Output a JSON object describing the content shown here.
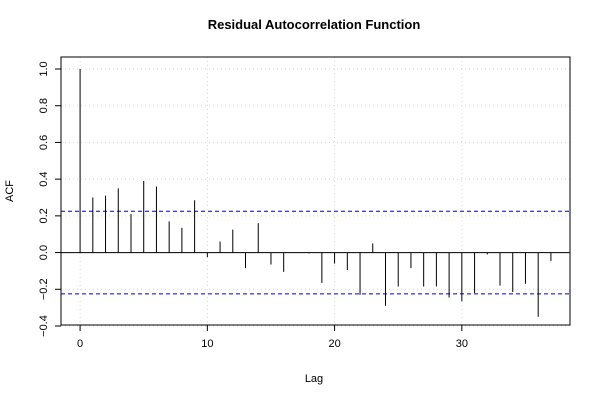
{
  "chart_data": {
    "type": "bar",
    "title": "Residual Autocorrelation Function",
    "xlabel": "Lag",
    "ylabel": "ACF",
    "xlim": [
      -1.5,
      38.5
    ],
    "ylim": [
      -0.4,
      1.0
    ],
    "xticks": [
      0,
      10,
      20,
      30
    ],
    "yticks": [
      -0.4,
      -0.2,
      0.0,
      0.2,
      0.4,
      0.6,
      0.8,
      1.0
    ],
    "ytick_labels": [
      "−0.4",
      "−0.2",
      "0.0",
      "0.2",
      "0.4",
      "0.6",
      "0.8",
      "1.0"
    ],
    "grid": true,
    "confidence_band": 0.225,
    "band_color": "#0000cc",
    "lags": [
      0,
      1,
      2,
      3,
      4,
      5,
      6,
      7,
      8,
      9,
      10,
      11,
      12,
      13,
      14,
      15,
      16,
      17,
      18,
      19,
      20,
      21,
      22,
      23,
      24,
      25,
      26,
      27,
      28,
      29,
      30,
      31,
      32,
      33,
      34,
      35,
      36,
      37
    ],
    "values": [
      1.0,
      0.3,
      0.31,
      0.35,
      0.21,
      0.39,
      0.36,
      0.17,
      0.135,
      0.285,
      -0.025,
      0.06,
      0.125,
      -0.085,
      0.16,
      -0.065,
      -0.105,
      0.0,
      -0.005,
      -0.165,
      -0.06,
      -0.095,
      -0.23,
      0.05,
      -0.29,
      -0.185,
      -0.085,
      -0.185,
      -0.185,
      -0.245,
      -0.265,
      -0.22,
      -0.01,
      -0.18,
      -0.215,
      -0.17,
      -0.35,
      -0.045
    ]
  }
}
